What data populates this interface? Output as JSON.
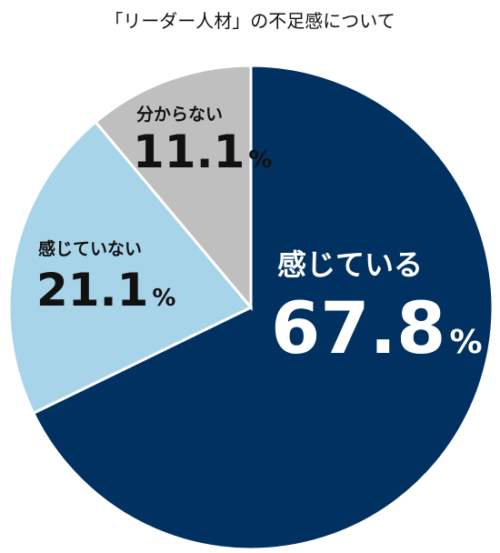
{
  "chart_data": {
    "type": "pie",
    "title": "「リーダー人材」の不足感について",
    "categories": [
      "感じている",
      "感じていない",
      "分からない"
    ],
    "values": [
      67.8,
      21.1,
      11.1
    ],
    "unit": "%",
    "colors": [
      "#003160",
      "#a8d4ea",
      "#bfbfbf"
    ],
    "label_colors": [
      "#ffffff",
      "#111111",
      "#111111"
    ]
  }
}
